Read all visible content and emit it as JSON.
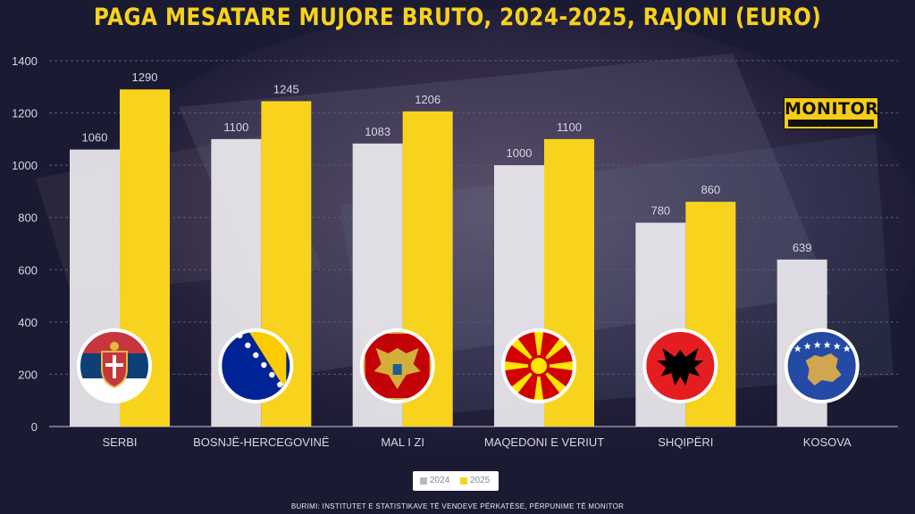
{
  "title": "PAGA MESATARE MUJORE BRUTO, 2024-2025, RAJONI (EURO)",
  "source": "BURIMI: INSTITUTET E STATISTIKAVE TË VENDEVE PËRKATËSE, PËRPUNIME TË MONITOR",
  "logo_text": "MONITOR",
  "colors": {
    "background": "#1b1a33",
    "title": "#f6d21c",
    "bar_2024": "#eceaee",
    "bar_2025": "#f8d31e",
    "grid": "#5c5a78",
    "axis_text": "#d8d6e4"
  },
  "chart_data": {
    "type": "bar",
    "title": "PAGA MESATARE MUJORE BRUTO, 2024-2025, RAJONI (EURO)",
    "categories": [
      "SERBI",
      "BOSNJË-HERCEGOVINË",
      "MAL I ZI",
      "MAQEDONI E VERIUT",
      "SHQIPËRI",
      "KOSOVA"
    ],
    "series": [
      {
        "name": "2024",
        "values": [
          1060,
          1100,
          1083,
          1000,
          780,
          639
        ]
      },
      {
        "name": "2025",
        "values": [
          1290,
          1245,
          1206,
          1100,
          860,
          null
        ]
      }
    ],
    "ylim": [
      0,
      1400
    ],
    "yticks": [
      0,
      200,
      400,
      600,
      800,
      1000,
      1200,
      1400
    ],
    "grid": true,
    "legend_position": "bottom-center",
    "flags": [
      "serbia-flag-icon",
      "bosnia-flag-icon",
      "montenegro-flag-icon",
      "north-macedonia-flag-icon",
      "albania-flag-icon",
      "kosovo-flag-icon"
    ]
  }
}
